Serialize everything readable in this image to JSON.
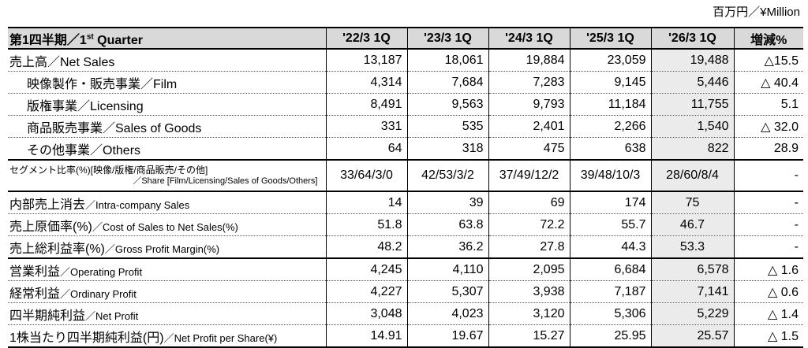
{
  "unit_label": "百万円／¥Million",
  "header": {
    "title_prefix": "第1四半期／1",
    "title_sup": "st",
    "title_suffix": " Quarter",
    "columns": [
      "'22/3 1Q",
      "'23/3 1Q",
      "'24/3 1Q",
      "'25/3 1Q",
      "'26/3 1Q",
      "増減%"
    ]
  },
  "rows": [
    {
      "label": "売上高／Net Sales",
      "values": [
        "13,187",
        "18,061",
        "19,884",
        "23,059",
        "19,488",
        "△15.5"
      ]
    },
    {
      "label": "映像製作・販売事業／Film",
      "values": [
        "4,314",
        "7,684",
        "7,283",
        "9,145",
        "5,446",
        "△ 40.4"
      ]
    },
    {
      "label": "版権事業／Licensing",
      "values": [
        "8,491",
        "9,563",
        "9,793",
        "11,184",
        "11,755",
        "5.1"
      ]
    },
    {
      "label": "商品販売事業／Sales of Goods",
      "values": [
        "331",
        "535",
        "2,401",
        "2,266",
        "1,540",
        "△ 32.0"
      ]
    },
    {
      "label": "その他事業／Others",
      "values": [
        "64",
        "318",
        "475",
        "638",
        "822",
        "28.9"
      ]
    },
    {
      "label": "セグメント比率(%)[映像/版権/商品販売/その他]",
      "sublabel": "／Share [Film/Licensing/Sales of Goods/Others]",
      "values": [
        "33/64/3/0",
        "42/53/3/2",
        "37/49/12/2",
        "39/48/10/3",
        "28/60/8/4",
        "-"
      ]
    },
    {
      "label": "内部売上消去",
      "label_en": "／Intra-company Sales",
      "values": [
        "14",
        "39",
        "69",
        "174",
        "75",
        "-"
      ]
    },
    {
      "label": "売上原価率(%)",
      "label_en": "／Cost of Sales to Net Sales(%)",
      "values": [
        "51.8",
        "63.8",
        "72.2",
        "55.7",
        "46.7",
        "-"
      ]
    },
    {
      "label": "売上総利益率(%)",
      "label_en": "／Gross Profit Margin(%)",
      "values": [
        "48.2",
        "36.2",
        "27.8",
        "44.3",
        "53.3",
        "-"
      ]
    },
    {
      "label": "営業利益",
      "label_en": "／Operating Profit",
      "values": [
        "4,245",
        "4,110",
        "2,095",
        "6,684",
        "6,578",
        "△ 1.6"
      ]
    },
    {
      "label": "経常利益",
      "label_en": "／Ordinary Profit",
      "values": [
        "4,227",
        "5,307",
        "3,938",
        "7,187",
        "7,141",
        "△ 0.6"
      ]
    },
    {
      "label": "四半期純利益",
      "label_en": "／Net Profit",
      "values": [
        "3,048",
        "4,023",
        "3,120",
        "5,306",
        "5,229",
        "△ 1.4"
      ]
    },
    {
      "label": "1株当たり四半期純利益(円)",
      "label_en": "／Net Profit per Share(¥)",
      "values": [
        "14.91",
        "19.67",
        "15.27",
        "25.95",
        "25.57",
        "△ 1.5"
      ]
    }
  ]
}
